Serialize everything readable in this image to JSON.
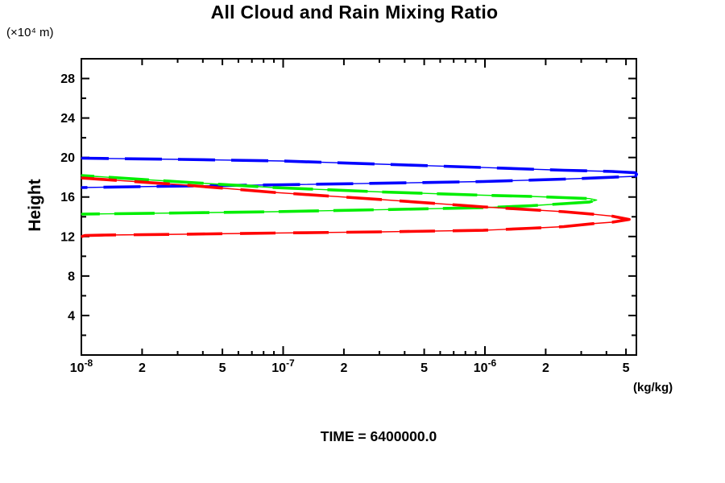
{
  "title": "All Cloud and Rain Mixing Ratio",
  "y_axis": {
    "unit_label": "(×10⁴ m)",
    "title": "Height",
    "tick_labels": [
      4,
      8,
      12,
      16,
      20,
      24,
      28
    ]
  },
  "x_axis": {
    "unit_label": "(kg/kg)"
  },
  "footer": {
    "time_label": "TIME = 6400000.0"
  },
  "chart_data": {
    "type": "line",
    "title": "All Cloud and Rain Mixing Ratio",
    "xlabel": "(kg/kg)",
    "ylabel": "Height",
    "y_unit": "(×10⁴ m)",
    "x_scale": "log",
    "xlim": [
      1e-08,
      5.65e-06
    ],
    "ylim": [
      0,
      30
    ],
    "grid": false,
    "legend": "none",
    "annotation": "TIME = 6400000.0",
    "x_ticks": [
      {
        "v": 1e-08,
        "base": "10",
        "sup": "-8"
      },
      {
        "v": 2e-08,
        "base": "2",
        "sup": ""
      },
      {
        "v": 5e-08,
        "base": "5",
        "sup": ""
      },
      {
        "v": 1e-07,
        "base": "10",
        "sup": "-7"
      },
      {
        "v": 2e-07,
        "base": "2",
        "sup": ""
      },
      {
        "v": 5e-07,
        "base": "5",
        "sup": ""
      },
      {
        "v": 1e-06,
        "base": "10",
        "sup": "-6"
      },
      {
        "v": 2e-06,
        "base": "2",
        "sup": ""
      },
      {
        "v": 5e-06,
        "base": "5",
        "sup": ""
      }
    ],
    "y_major_ticks": [
      4,
      8,
      12,
      16,
      20,
      24,
      28
    ],
    "y_minor_ticks": [
      2,
      6,
      10,
      14,
      18,
      22,
      26
    ],
    "series": [
      {
        "name": "blue-curve",
        "color": "#0000ff",
        "dash": "46 20",
        "dashoffset": 12,
        "points": [
          [
            1e-08,
            19.93
          ],
          [
            3.13e-08,
            19.81
          ],
          [
            9.9e-08,
            19.65
          ],
          [
            3.11e-07,
            19.32
          ],
          [
            9.8e-07,
            18.99
          ],
          [
            2.46e-06,
            18.71
          ],
          [
            4.27e-06,
            18.59
          ],
          [
            5.58e-06,
            18.46
          ],
          [
            5.64e-06,
            18.3
          ],
          [
            5.58e-06,
            18.1
          ],
          [
            3.9e-06,
            17.97
          ],
          [
            2.46e-06,
            17.81
          ],
          [
            9.8e-07,
            17.57
          ],
          [
            3.11e-07,
            17.4
          ],
          [
            9.9e-08,
            17.24
          ],
          [
            2.48e-08,
            17.08
          ],
          [
            1e-08,
            16.96
          ]
        ]
      },
      {
        "name": "green-curve",
        "color": "#00ee00",
        "dash": "50 18",
        "dashoffset": 34,
        "points": [
          [
            1e-08,
            18.18
          ],
          [
            3.13e-08,
            17.53
          ],
          [
            9e-08,
            16.96
          ],
          [
            3.11e-07,
            16.51
          ],
          [
            9.8e-07,
            16.18
          ],
          [
            1.7e-06,
            16.06
          ],
          [
            2.46e-06,
            15.94
          ],
          [
            3.3e-06,
            15.84
          ],
          [
            3.58e-06,
            15.69
          ],
          [
            3.3e-06,
            15.5
          ],
          [
            2.46e-06,
            15.33
          ],
          [
            1.7e-06,
            15.12
          ],
          [
            9.8e-07,
            14.92
          ],
          [
            3.11e-07,
            14.72
          ],
          [
            9e-08,
            14.51
          ],
          [
            3.13e-08,
            14.39
          ],
          [
            1e-08,
            14.27
          ]
        ]
      },
      {
        "name": "red-curve",
        "color": "#ff0000",
        "dash": "44 22",
        "dashoffset": 0,
        "points": [
          [
            1e-08,
            17.93
          ],
          [
            3.13e-08,
            17.24
          ],
          [
            9e-08,
            16.47
          ],
          [
            3.11e-07,
            15.73
          ],
          [
            9.8e-07,
            15.0
          ],
          [
            1.7e-06,
            14.71
          ],
          [
            2.46e-06,
            14.51
          ],
          [
            3.55e-06,
            14.23
          ],
          [
            4.27e-06,
            14.06
          ],
          [
            5.19e-06,
            13.73
          ],
          [
            4.27e-06,
            13.45
          ],
          [
            3.55e-06,
            13.33
          ],
          [
            2.46e-06,
            13.0
          ],
          [
            1.7e-06,
            12.84
          ],
          [
            9.8e-07,
            12.63
          ],
          [
            3.11e-07,
            12.47
          ],
          [
            9e-08,
            12.35
          ],
          [
            3.13e-08,
            12.23
          ],
          [
            1.31e-08,
            12.15
          ],
          [
            1.04e-08,
            12.1
          ],
          [
            1e-08,
            11.98
          ]
        ]
      }
    ]
  }
}
